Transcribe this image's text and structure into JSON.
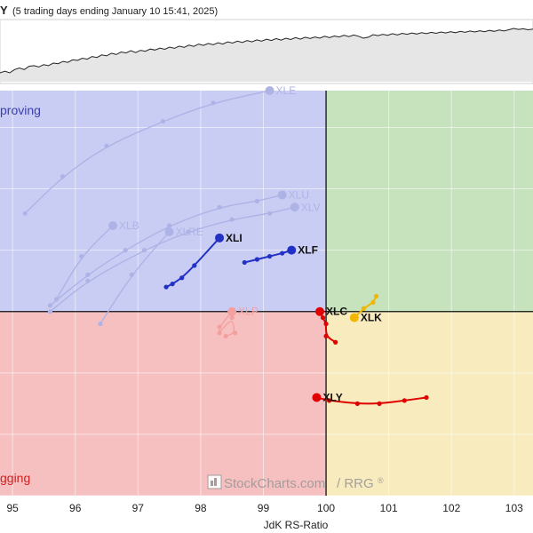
{
  "header": {
    "title_fragment": "Y",
    "subtitle": "(5 trading days ending January 10 15:41, 2025)"
  },
  "watermark": {
    "brand": "StockCharts.com",
    "suffix": "/ RRG",
    "reg": "®"
  },
  "quadrants": {
    "top_left": {
      "label": "Improving",
      "visible_label": "proving",
      "color": "#c9cdf4"
    },
    "top_right": {
      "label": "",
      "color": "#c6e3bd"
    },
    "bottom_left": {
      "label": "Lagging",
      "visible_label": "gging",
      "color": "#f6c0c0"
    },
    "bottom_right": {
      "label": "",
      "color": "#f8ebbd"
    },
    "improving_text_color": "#3a3fb0",
    "lagging_text_color": "#d11f1f"
  },
  "chart_data": {
    "type": "scatter",
    "title": "",
    "xlabel": "JdK RS-Ratio",
    "ylabel": "",
    "xlim": [
      94.8,
      103.3
    ],
    "ylim": [
      97.0,
      103.6
    ],
    "x_ticks": [
      "95",
      "96",
      "97",
      "98",
      "99",
      "100",
      "101",
      "102",
      "103"
    ],
    "x_tick_values": [
      95,
      96,
      97,
      98,
      99,
      100,
      101,
      102,
      103
    ],
    "center": {
      "x": 100,
      "y": 100
    },
    "grid": true,
    "series": [
      {
        "name": "XLE",
        "faded": true,
        "color": "#aeb3e6",
        "points": [
          [
            95.2,
            101.6
          ],
          [
            95.8,
            102.2
          ],
          [
            96.5,
            102.7
          ],
          [
            97.4,
            103.1
          ],
          [
            98.2,
            103.4
          ],
          [
            99.1,
            103.6
          ]
        ]
      },
      {
        "name": "XLU",
        "faded": true,
        "color": "#aeb3e6",
        "points": [
          [
            95.6,
            100.1
          ],
          [
            96.2,
            100.6
          ],
          [
            96.8,
            101.0
          ],
          [
            97.5,
            101.4
          ],
          [
            98.3,
            101.7
          ],
          [
            98.9,
            101.8
          ],
          [
            99.3,
            101.9
          ]
        ]
      },
      {
        "name": "XLV",
        "faded": true,
        "color": "#aeb3e6",
        "points": [
          [
            95.6,
            100.0
          ],
          [
            96.2,
            100.5
          ],
          [
            97.1,
            101.0
          ],
          [
            97.8,
            101.3
          ],
          [
            98.5,
            101.5
          ],
          [
            99.1,
            101.6
          ],
          [
            99.5,
            101.7
          ]
        ]
      },
      {
        "name": "XLB",
        "faded": true,
        "color": "#aeb3e6",
        "points": [
          [
            95.7,
            100.2
          ],
          [
            96.1,
            100.9
          ],
          [
            96.6,
            101.4
          ]
        ]
      },
      {
        "name": "XLRE",
        "faded": true,
        "color": "#aeb3e6",
        "points": [
          [
            96.4,
            99.8
          ],
          [
            96.9,
            100.6
          ],
          [
            97.5,
            101.3
          ]
        ]
      },
      {
        "name": "XLI",
        "faded": false,
        "color": "#2230c4",
        "points": [
          [
            97.45,
            100.4
          ],
          [
            97.55,
            100.45
          ],
          [
            97.7,
            100.55
          ],
          [
            97.9,
            100.75
          ],
          [
            98.3,
            101.2
          ]
        ]
      },
      {
        "name": "XLF",
        "faded": false,
        "color": "#2230c4",
        "points": [
          [
            98.7,
            100.8
          ],
          [
            98.9,
            100.85
          ],
          [
            99.1,
            100.9
          ],
          [
            99.3,
            100.95
          ],
          [
            99.45,
            101.0
          ]
        ]
      },
      {
        "name": "XLP",
        "faded": true,
        "color": "#f5a0a0",
        "points": [
          [
            98.4,
            99.6
          ],
          [
            98.55,
            99.65
          ],
          [
            98.5,
            99.9
          ],
          [
            98.3,
            99.65
          ],
          [
            98.3,
            99.75
          ],
          [
            98.5,
            100.0
          ]
        ]
      },
      {
        "name": "XLC",
        "faded": false,
        "color": "#e00000",
        "points": [
          [
            100.15,
            99.5
          ],
          [
            100.0,
            99.6
          ],
          [
            100.0,
            99.8
          ],
          [
            99.95,
            99.9
          ],
          [
            99.9,
            100.0
          ]
        ]
      },
      {
        "name": "XLK",
        "faded": false,
        "color": "#f2b500",
        "points": [
          [
            100.8,
            100.25
          ],
          [
            100.75,
            100.15
          ],
          [
            100.6,
            100.05
          ],
          [
            100.45,
            99.9
          ]
        ]
      },
      {
        "name": "XLY",
        "faded": false,
        "color": "#e00000",
        "points": [
          [
            101.6,
            98.6
          ],
          [
            101.25,
            98.55
          ],
          [
            100.85,
            98.5
          ],
          [
            100.5,
            98.5
          ],
          [
            100.05,
            98.55
          ],
          [
            99.85,
            98.6
          ]
        ]
      }
    ]
  },
  "mini_chart": {
    "area_color": "#e6e6e6",
    "line_color": "#222222",
    "values": [
      8,
      8.5,
      8,
      9,
      9.5,
      9,
      10,
      10.2,
      9.8,
      10.5,
      10.2,
      11,
      10.8,
      11.5,
      11.2,
      12,
      11.8,
      12.5,
      12.2,
      13,
      12.7,
      13.5,
      13.2,
      14,
      13.6,
      14.4,
      14.1,
      14.8,
      14.2,
      14.9,
      14.6,
      15.3,
      15,
      15.6,
      15.2,
      15.9,
      15.5,
      16.2,
      15.8,
      16.5,
      16.1,
      16.8,
      16.4,
      17,
      16.6,
      17.2,
      16.8,
      17.5,
      17.1,
      17.7,
      17.3,
      17.9,
      17.5,
      18.1,
      17.7,
      18.3,
      17.9,
      18.5,
      18,
      18.6,
      18.2,
      18.8,
      18.3,
      18.9,
      18.5,
      19,
      18.6,
      19.2,
      18.8,
      19.3,
      19,
      19.5,
      19.1,
      19.6,
      19.2,
      18.6,
      18.9,
      19.7,
      19.4,
      19.8,
      19.5,
      20,
      19.6,
      20.1,
      19.8,
      20.2,
      19.9,
      20.3,
      20,
      20.4,
      20.1,
      20.5,
      20.2,
      20.6,
      20.3,
      20.7,
      20.4,
      20.8,
      20.5,
      20.9,
      20.6,
      21,
      20.7,
      21.1,
      20.8,
      21.2,
      21.6,
      21.3,
      21.5,
      21.2,
      21.4
    ]
  }
}
